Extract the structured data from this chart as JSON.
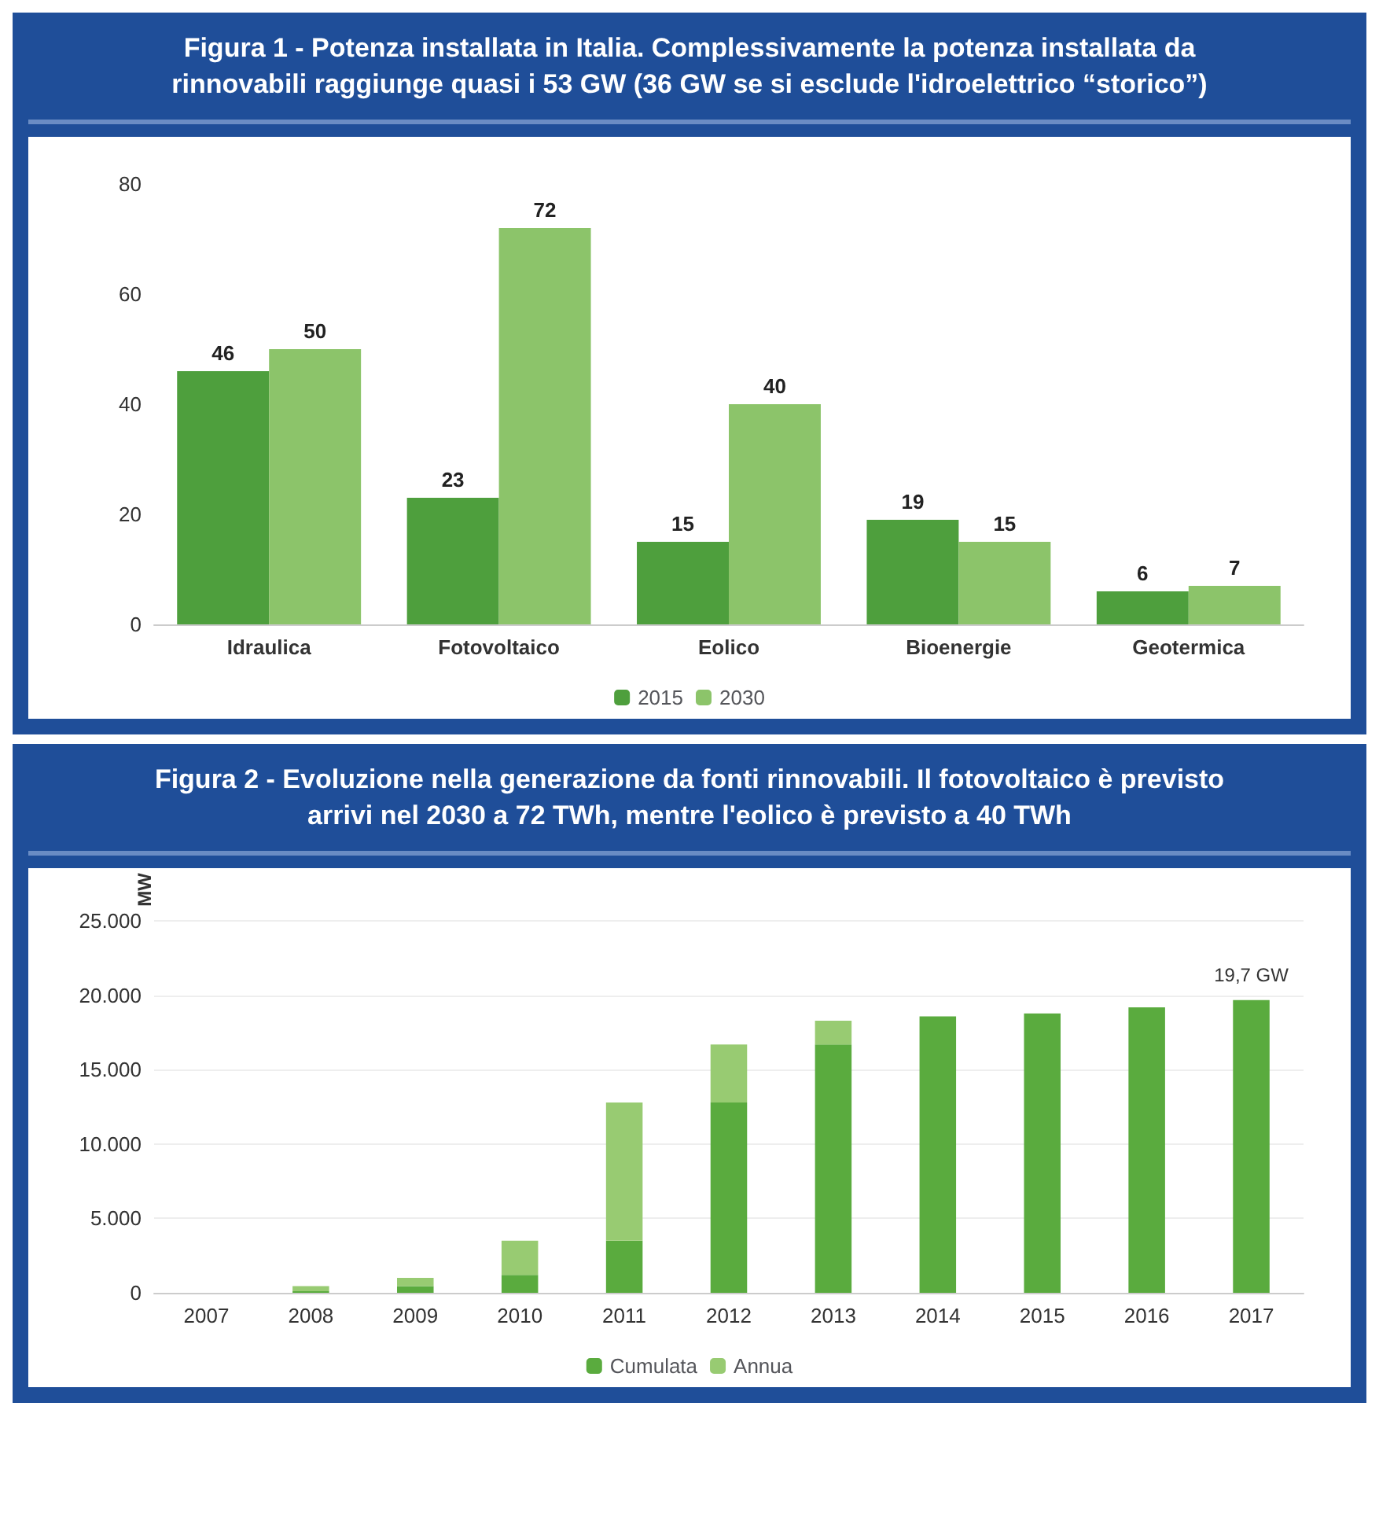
{
  "chart_data": [
    {
      "type": "bar",
      "title": "Figura 1 - Potenza installata in Italia. Complessivamente la potenza installata da rinnovabili raggiunge quasi i 53 GW (36 GW se si esclude l'idroelettrico “storico”)",
      "categories": [
        "Idraulica",
        "Fotovoltaico",
        "Eolico",
        "Bioenergie",
        "Geotermica"
      ],
      "series": [
        {
          "name": "2015",
          "color": "#4e9f3d",
          "values": [
            46,
            23,
            15,
            19,
            6
          ]
        },
        {
          "name": "2030",
          "color": "#8cc46a",
          "values": [
            50,
            72,
            40,
            15,
            7
          ]
        }
      ],
      "ylim": [
        0,
        80
      ],
      "yticks": [
        0,
        20,
        40,
        60,
        80
      ],
      "grid": false,
      "legend": "bottom",
      "data_labels": true
    },
    {
      "type": "bar",
      "title": "Figura 2 - Evoluzione nella generazione da fonti rinnovabili. Il fotovoltaico è previsto arrivi nel 2030 a 72 TWh, mentre l'eolico è previsto a 40 TWh",
      "ylabel": "MW",
      "categories": [
        "2007",
        "2008",
        "2009",
        "2010",
        "2011",
        "2012",
        "2013",
        "2014",
        "2015",
        "2016",
        "2017"
      ],
      "stacked": true,
      "series": [
        {
          "name": "Cumulata",
          "color": "#5aab3e",
          "values": [
            0,
            100,
            450,
            1200,
            3500,
            12800,
            16700,
            18600,
            18800,
            19200,
            19700
          ]
        },
        {
          "name": "Annua",
          "color": "#98cb72",
          "values": [
            0,
            350,
            550,
            2300,
            9300,
            3900,
            1600,
            0,
            0,
            0,
            0
          ]
        }
      ],
      "ylim": [
        0,
        25000
      ],
      "yticks": [
        {
          "value": 0,
          "label": "0"
        },
        {
          "value": 5000,
          "label": "5.000"
        },
        {
          "value": 10000,
          "label": "10.000"
        },
        {
          "value": 15000,
          "label": "15.000"
        },
        {
          "value": 20000,
          "label": "20.000"
        },
        {
          "value": 25000,
          "label": "25.000"
        }
      ],
      "grid": "y",
      "legend": "bottom",
      "annotations": [
        {
          "text": "19,7 GW",
          "x": "2017",
          "y": 19700
        }
      ]
    }
  ]
}
